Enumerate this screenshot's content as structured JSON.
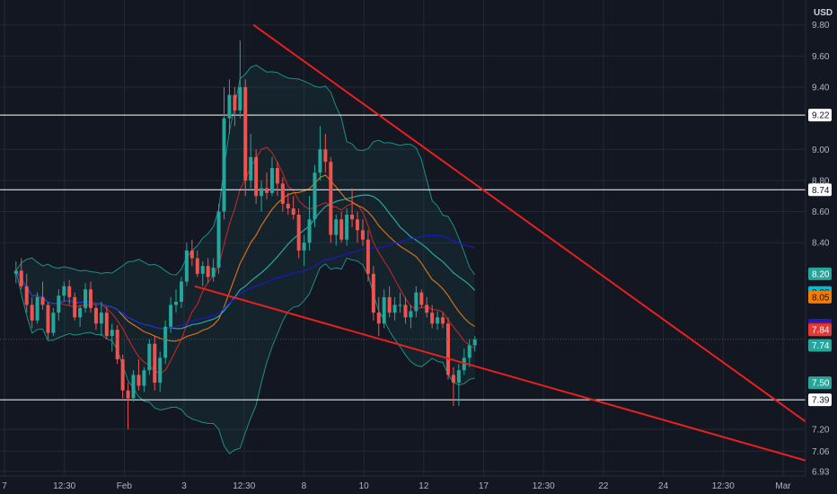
{
  "currency_label": "USD",
  "colors": {
    "background": "#131722",
    "grid": "#242836",
    "up_candle": "#26a69a",
    "down_candle": "#ef5350",
    "trendline": "#e8201e",
    "horizontal_level": "#ffffff",
    "bollinger": "#1e8f86",
    "ma_blue": "#1a1ad8",
    "ma_orange": "#e6791a",
    "ma_teal": "#2bb6ac",
    "ma_red": "#c62828"
  },
  "chart_data": {
    "type": "candlestick",
    "y_ticks": [
      "9.80",
      "9.60",
      "9.40",
      "9.00",
      "8.80",
      "8.60",
      "8.40",
      "7.20",
      "7.06",
      "6.93"
    ],
    "x_ticks": [
      "7",
      "12:30",
      "Feb",
      "3",
      "12:30",
      "8",
      "10",
      "12",
      "17",
      "12:30",
      "22",
      "24",
      "12:30",
      "Mar"
    ],
    "horizontal_levels": [
      9.22,
      8.74,
      7.39
    ],
    "price_tags": [
      {
        "value": "9.22",
        "color": "#ffffff",
        "text": "#131722"
      },
      {
        "value": "8.74",
        "color": "#ffffff",
        "text": "#131722"
      },
      {
        "value": "8.20",
        "color": "#26a69a",
        "text": "#ffffff"
      },
      {
        "value": "8.08",
        "color": "#00bcd4",
        "text": "#131722"
      },
      {
        "value": "8.05",
        "color": "#f57c00",
        "text": "#131722"
      },
      {
        "value": "7.87",
        "color": "#1a1ad8",
        "text": "#ffffff"
      },
      {
        "value": "7.85",
        "color": "#8b1a1a",
        "text": "#ffffff"
      },
      {
        "value": "7.84",
        "color": "#e53935",
        "text": "#ffffff"
      },
      {
        "value": "7.74",
        "color": "#26a69a",
        "text": "#ffffff"
      },
      {
        "value": "7.50",
        "color": "#26a69a",
        "text": "#ffffff"
      },
      {
        "value": "7.39",
        "color": "#ffffff",
        "text": "#131722"
      }
    ],
    "candles": [
      [
        8.2,
        8.28,
        8.14,
        8.22
      ],
      [
        8.22,
        8.3,
        8.1,
        8.12
      ],
      [
        8.12,
        8.2,
        7.95,
        8.0
      ],
      [
        8.0,
        8.05,
        7.85,
        7.9
      ],
      [
        7.9,
        8.08,
        7.88,
        8.05
      ],
      [
        8.05,
        8.15,
        7.97,
        8.0
      ],
      [
        8.0,
        8.02,
        7.78,
        7.82
      ],
      [
        7.82,
        7.98,
        7.8,
        7.95
      ],
      [
        7.95,
        8.1,
        7.9,
        8.06
      ],
      [
        8.06,
        8.15,
        8.02,
        8.12
      ],
      [
        8.12,
        8.16,
        8.0,
        8.05
      ],
      [
        8.05,
        8.08,
        7.9,
        7.92
      ],
      [
        7.92,
        8.0,
        7.86,
        7.98
      ],
      [
        7.98,
        8.14,
        7.95,
        8.1
      ],
      [
        8.1,
        8.15,
        7.95,
        7.98
      ],
      [
        7.98,
        8.0,
        7.84,
        7.88
      ],
      [
        7.88,
        8.02,
        7.8,
        7.95
      ],
      [
        7.95,
        7.99,
        7.78,
        7.8
      ],
      [
        7.8,
        7.88,
        7.7,
        7.84
      ],
      [
        7.84,
        7.87,
        7.62,
        7.65
      ],
      [
        7.65,
        7.68,
        7.4,
        7.45
      ],
      [
        7.45,
        7.5,
        7.2,
        7.4
      ],
      [
        7.4,
        7.58,
        7.38,
        7.55
      ],
      [
        7.55,
        7.65,
        7.45,
        7.48
      ],
      [
        7.48,
        7.6,
        7.44,
        7.58
      ],
      [
        7.58,
        7.78,
        7.55,
        7.75
      ],
      [
        7.75,
        7.8,
        7.45,
        7.5
      ],
      [
        7.5,
        7.7,
        7.44,
        7.66
      ],
      [
        7.66,
        7.9,
        7.62,
        7.86
      ],
      [
        7.86,
        8.05,
        7.82,
        8.0
      ],
      [
        8.0,
        8.1,
        7.95,
        8.02
      ],
      [
        8.02,
        8.18,
        7.98,
        8.15
      ],
      [
        8.15,
        8.4,
        8.12,
        8.35
      ],
      [
        8.35,
        8.42,
        8.25,
        8.3
      ],
      [
        8.3,
        8.35,
        8.18,
        8.2
      ],
      [
        8.2,
        8.28,
        8.12,
        8.25
      ],
      [
        8.25,
        8.3,
        8.14,
        8.18
      ],
      [
        8.18,
        8.3,
        8.15,
        8.24
      ],
      [
        8.24,
        8.65,
        8.2,
        8.6
      ],
      [
        8.6,
        9.4,
        8.55,
        9.2
      ],
      [
        9.2,
        9.45,
        9.1,
        9.35
      ],
      [
        9.35,
        9.4,
        9.15,
        9.25
      ],
      [
        9.25,
        9.7,
        9.2,
        9.4
      ],
      [
        9.4,
        9.45,
        8.7,
        8.8
      ],
      [
        8.8,
        9.1,
        8.75,
        8.95
      ],
      [
        8.95,
        9.0,
        8.65,
        8.7
      ],
      [
        8.7,
        8.8,
        8.6,
        8.75
      ],
      [
        8.75,
        8.85,
        8.68,
        8.72
      ],
      [
        8.72,
        8.95,
        8.7,
        8.88
      ],
      [
        8.88,
        8.92,
        8.7,
        8.78
      ],
      [
        8.78,
        8.82,
        8.6,
        8.65
      ],
      [
        8.65,
        8.72,
        8.58,
        8.62
      ],
      [
        8.62,
        8.7,
        8.55,
        8.58
      ],
      [
        8.58,
        8.62,
        8.3,
        8.35
      ],
      [
        8.35,
        8.45,
        8.25,
        8.4
      ],
      [
        8.4,
        8.7,
        8.35,
        8.55
      ],
      [
        8.55,
        8.9,
        8.5,
        8.85
      ],
      [
        8.85,
        9.15,
        8.8,
        9.0
      ],
      [
        9.0,
        9.1,
        8.85,
        8.92
      ],
      [
        8.92,
        8.95,
        8.4,
        8.45
      ],
      [
        8.45,
        8.58,
        8.38,
        8.55
      ],
      [
        8.55,
        8.6,
        8.4,
        8.42
      ],
      [
        8.42,
        8.62,
        8.38,
        8.58
      ],
      [
        8.58,
        8.75,
        8.5,
        8.55
      ],
      [
        8.55,
        8.6,
        8.4,
        8.48
      ],
      [
        8.48,
        8.55,
        8.38,
        8.42
      ],
      [
        8.42,
        8.48,
        8.15,
        8.2
      ],
      [
        8.2,
        8.25,
        7.9,
        7.95
      ],
      [
        7.95,
        8.05,
        7.8,
        7.88
      ],
      [
        7.88,
        8.1,
        7.85,
        8.05
      ],
      [
        8.05,
        8.12,
        7.92,
        7.95
      ],
      [
        7.95,
        8.05,
        7.9,
        8.0
      ],
      [
        8.0,
        8.08,
        7.95,
        8.0
      ],
      [
        8.0,
        8.05,
        7.88,
        7.92
      ],
      [
        7.92,
        8.0,
        7.85,
        7.96
      ],
      [
        7.96,
        8.12,
        7.92,
        8.08
      ],
      [
        8.08,
        8.1,
        7.98,
        8.0
      ],
      [
        8.0,
        8.05,
        7.92,
        7.95
      ],
      [
        7.95,
        8.0,
        7.85,
        7.88
      ],
      [
        7.88,
        7.96,
        7.84,
        7.92
      ],
      [
        7.92,
        7.95,
        7.85,
        7.88
      ],
      [
        7.88,
        7.92,
        7.52,
        7.55
      ],
      [
        7.55,
        7.6,
        7.35,
        7.5
      ],
      [
        7.5,
        7.62,
        7.35,
        7.58
      ],
      [
        7.58,
        7.72,
        7.55,
        7.66
      ],
      [
        7.66,
        7.78,
        7.6,
        7.74
      ],
      [
        7.74,
        7.8,
        7.7,
        7.78
      ]
    ],
    "x_range": [
      -3,
      148
    ],
    "y_range": [
      6.9,
      9.96
    ],
    "trendlines": [
      {
        "x1": 44.5,
        "y1": 9.8,
        "x2": 148,
        "y2": 7.25
      },
      {
        "x1": 33.5,
        "y1": 8.12,
        "x2": 148,
        "y2": 7.0
      }
    ]
  }
}
